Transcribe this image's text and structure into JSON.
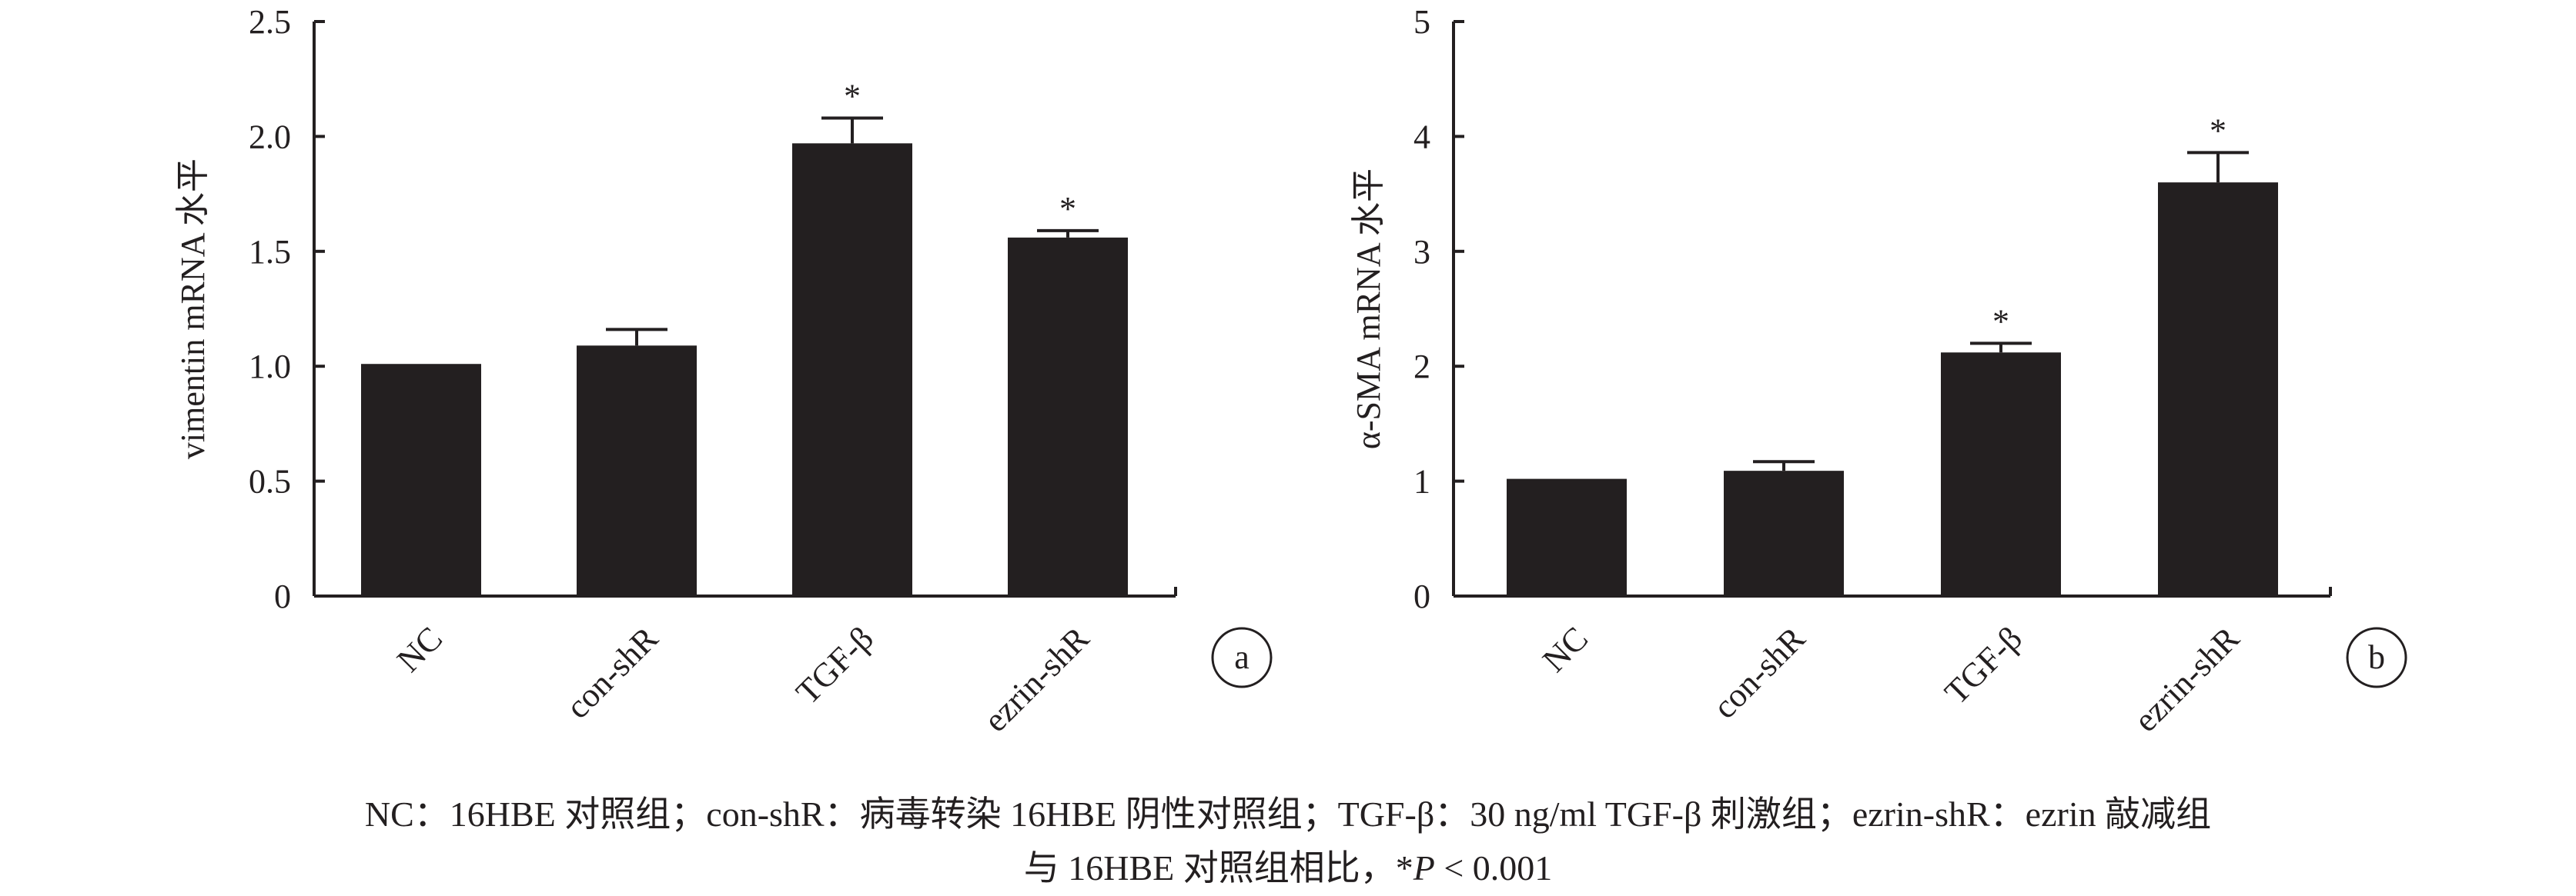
{
  "chart_data": [
    {
      "type": "bar",
      "panel_label": "a",
      "ylabel": "vimentin mRNA 水平",
      "categories": [
        "NC",
        "con-shR",
        "TGF-β",
        "ezrin-shR"
      ],
      "values": [
        1.01,
        1.09,
        1.97,
        1.56
      ],
      "error": [
        0.0,
        0.07,
        0.11,
        0.03
      ],
      "significance": [
        "",
        "",
        "*",
        "*"
      ],
      "ylim": [
        0,
        2.5
      ],
      "yticks": [
        0,
        0.5,
        1.0,
        1.5,
        2.0,
        2.5
      ],
      "ytick_labels": [
        "0",
        "0.5",
        "1.0",
        "1.5",
        "2.0",
        "2.5"
      ],
      "bar_color": "#231f20",
      "grid": false
    },
    {
      "type": "bar",
      "panel_label": "b",
      "ylabel": "α-SMA mRNA 水平",
      "categories": [
        "NC",
        "con-shR",
        "TGF-β",
        "ezrin-shR"
      ],
      "values": [
        1.02,
        1.09,
        2.12,
        3.6
      ],
      "error": [
        0.0,
        0.08,
        0.08,
        0.26
      ],
      "significance": [
        "",
        "",
        "*",
        "*"
      ],
      "ylim": [
        0,
        5
      ],
      "yticks": [
        0,
        1,
        2,
        3,
        4,
        5
      ],
      "ytick_labels": [
        "0",
        "1",
        "2",
        "3",
        "4",
        "5"
      ],
      "bar_color": "#231f20",
      "grid": false
    }
  ],
  "caption": {
    "line1": "NC：16HBE 对照组；con-shR：病毒转染 16HBE 阴性对照组；TGF-β：30 ng/ml TGF-β 刺激组；ezrin-shR：ezrin 敲减组",
    "line2_prefix": "与 16HBE 对照组相比，*",
    "line2_p": "P",
    "line2_suffix": " < 0.001"
  }
}
